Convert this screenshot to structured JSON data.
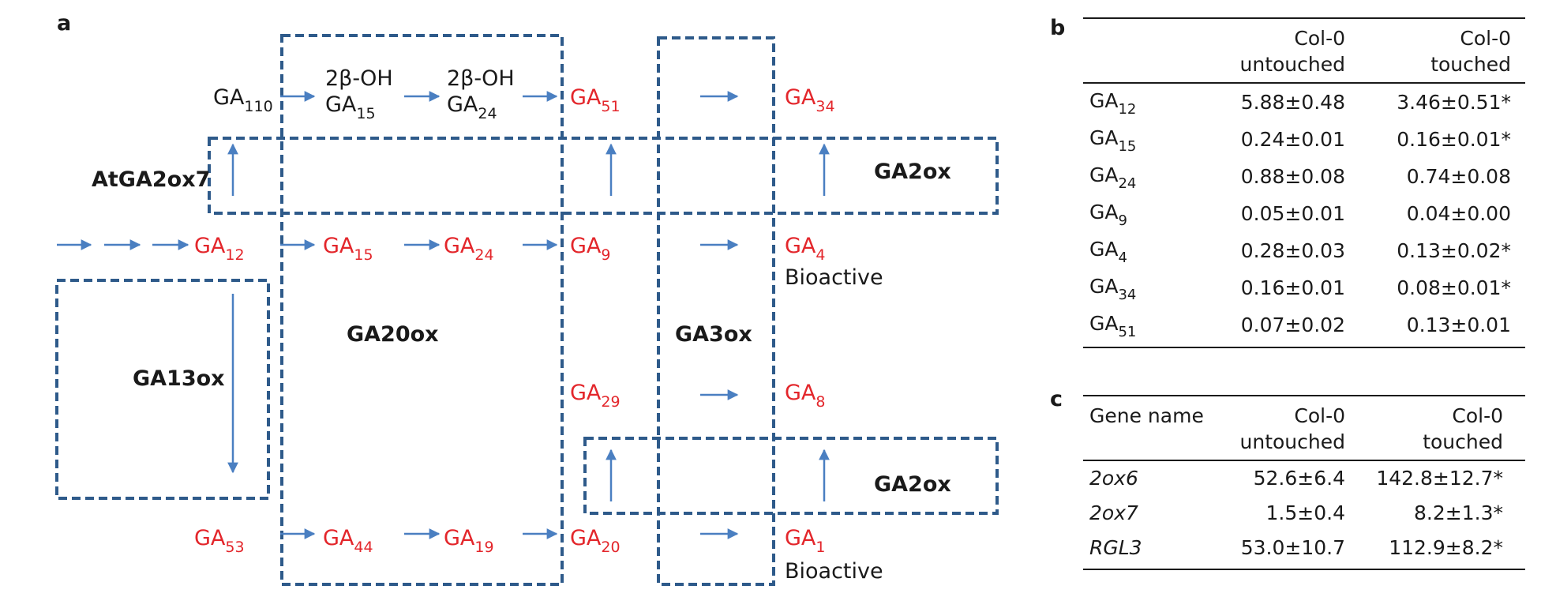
{
  "panel_a": {
    "label": "a",
    "top_row": {
      "start": "GA",
      "start_sub": "110",
      "mid1_line1": "2β-OH",
      "mid1_line2": "GA",
      "mid1_sub": "15",
      "mid2_line1": "2β-OH",
      "mid2_line2": "GA",
      "mid2_sub": "24",
      "end": "GA",
      "end_sub": "51",
      "product": "GA",
      "product_sub": "34"
    },
    "middle_row": [
      {
        "base": "GA",
        "sub": "12"
      },
      {
        "base": "GA",
        "sub": "15"
      },
      {
        "base": "GA",
        "sub": "24"
      },
      {
        "base": "GA",
        "sub": "9"
      },
      {
        "base": "GA",
        "sub": "4"
      }
    ],
    "ga4_note": "Bioactive",
    "ga29": {
      "base": "GA",
      "sub": "29"
    },
    "ga8": {
      "base": "GA",
      "sub": "8"
    },
    "bottom_row": [
      {
        "base": "GA",
        "sub": "53"
      },
      {
        "base": "GA",
        "sub": "44"
      },
      {
        "base": "GA",
        "sub": "19"
      },
      {
        "base": "GA",
        "sub": "20"
      },
      {
        "base": "GA",
        "sub": "1"
      }
    ],
    "ga1_note": "Bioactive",
    "enzymes": {
      "atga2ox7": "AtGA2ox7",
      "ga2ox_top": "GA2ox",
      "ga13ox": "GA13ox",
      "ga20ox": "GA20ox",
      "ga3ox": "GA3ox",
      "ga2ox_bottom": "GA2ox"
    },
    "colors": {
      "metabolite": "#e3262b",
      "arrow": "#4a7fc1",
      "box": "#2e5a8a",
      "text": "#1a1a1a"
    }
  },
  "panel_b": {
    "label": "b",
    "headers": [
      {
        "line1": "",
        "line2": ""
      },
      {
        "line1": "Col-0",
        "line2": "untouched"
      },
      {
        "line1": "Col-0",
        "line2": "touched"
      }
    ],
    "rows": [
      {
        "base": "GA",
        "sub": "12",
        "untouched": "5.88±0.48",
        "touched": "3.46±0.51*"
      },
      {
        "base": "GA",
        "sub": "15",
        "untouched": "0.24±0.01",
        "touched": "0.16±0.01*"
      },
      {
        "base": "GA",
        "sub": "24",
        "untouched": "0.88±0.08",
        "touched": "0.74±0.08"
      },
      {
        "base": "GA",
        "sub": "9",
        "untouched": "0.05±0.01",
        "touched": "0.04±0.00"
      },
      {
        "base": "GA",
        "sub": "4",
        "untouched": "0.28±0.03",
        "touched": "0.13±0.02*"
      },
      {
        "base": "GA",
        "sub": "34",
        "untouched": "0.16±0.01",
        "touched": "0.08±0.01*"
      },
      {
        "base": "GA",
        "sub": "51",
        "untouched": "0.07±0.02",
        "touched": "0.13±0.01"
      }
    ]
  },
  "panel_c": {
    "label": "c",
    "headers": [
      {
        "line1": "Gene name",
        "line2": ""
      },
      {
        "line1": "Col-0",
        "line2": "untouched"
      },
      {
        "line1": "Col-0",
        "line2": "touched"
      }
    ],
    "rows": [
      {
        "gene": "2ox6",
        "untouched": "52.6±6.4",
        "touched": "142.8±12.7*"
      },
      {
        "gene": "2ox7",
        "untouched": "1.5±0.4",
        "touched": "8.2±1.3*"
      },
      {
        "gene": "RGL3",
        "untouched": "53.0±10.7",
        "touched": "112.9±8.2*"
      }
    ]
  }
}
